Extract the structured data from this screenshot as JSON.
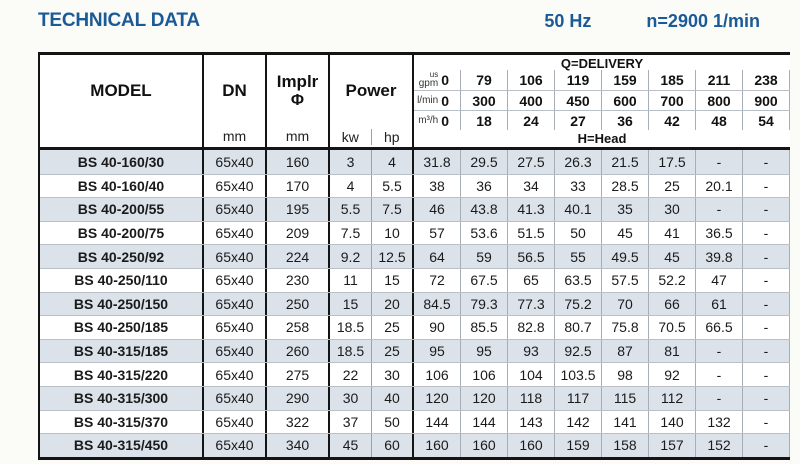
{
  "header": {
    "title": "TECHNICAL DATA",
    "frequency": "50 Hz",
    "speed": "n=2900 1/min"
  },
  "colors": {
    "accent_blue": "#1a5a96",
    "row_shade": "#dce2ea",
    "border_dark": "#141414"
  },
  "table": {
    "columns": {
      "model": {
        "label": "MODEL"
      },
      "dn": {
        "label": "DN",
        "unit": "mm"
      },
      "impeller": {
        "label": "Implr",
        "symbol": "Φ",
        "unit": "mm"
      },
      "power": {
        "label": "Power",
        "unit_kw": "kw",
        "unit_hp": "hp"
      }
    },
    "delivery": {
      "title": "Q=DELIVERY",
      "head_title": "H=Head",
      "unit_rows": [
        {
          "unit_top": "us",
          "unit": "gpm",
          "values": [
            "0",
            "79",
            "106",
            "119",
            "159",
            "185",
            "211",
            "238"
          ]
        },
        {
          "unit": "l/min",
          "values": [
            "0",
            "300",
            "400",
            "450",
            "600",
            "700",
            "800",
            "900"
          ]
        },
        {
          "unit": "m³/h",
          "values": [
            "0",
            "18",
            "24",
            "27",
            "36",
            "42",
            "48",
            "54"
          ]
        }
      ]
    },
    "rows": [
      {
        "model": "BS 40-160/30",
        "dn": "65x40",
        "impeller": "160",
        "kw": "3",
        "hp": "4",
        "heads": [
          "31.8",
          "29.5",
          "27.5",
          "26.3",
          "21.5",
          "17.5",
          "-",
          "-"
        ]
      },
      {
        "model": "BS 40-160/40",
        "dn": "65x40",
        "impeller": "170",
        "kw": "4",
        "hp": "5.5",
        "heads": [
          "38",
          "36",
          "34",
          "33",
          "28.5",
          "25",
          "20.1",
          "-"
        ]
      },
      {
        "model": "BS 40-200/55",
        "dn": "65x40",
        "impeller": "195",
        "kw": "5.5",
        "hp": "7.5",
        "heads": [
          "46",
          "43.8",
          "41.3",
          "40.1",
          "35",
          "30",
          "-",
          "-"
        ]
      },
      {
        "model": "BS 40-200/75",
        "dn": "65x40",
        "impeller": "209",
        "kw": "7.5",
        "hp": "10",
        "heads": [
          "57",
          "53.6",
          "51.5",
          "50",
          "45",
          "41",
          "36.5",
          "-"
        ]
      },
      {
        "model": "BS 40-250/92",
        "dn": "65x40",
        "impeller": "224",
        "kw": "9.2",
        "hp": "12.5",
        "heads": [
          "64",
          "59",
          "56.5",
          "55",
          "49.5",
          "45",
          "39.8",
          "-"
        ]
      },
      {
        "model": "BS 40-250/110",
        "dn": "65x40",
        "impeller": "230",
        "kw": "11",
        "hp": "15",
        "heads": [
          "72",
          "67.5",
          "65",
          "63.5",
          "57.5",
          "52.2",
          "47",
          "-"
        ]
      },
      {
        "model": "BS 40-250/150",
        "dn": "65x40",
        "impeller": "250",
        "kw": "15",
        "hp": "20",
        "heads": [
          "84.5",
          "79.3",
          "77.3",
          "75.2",
          "70",
          "66",
          "61",
          "-"
        ]
      },
      {
        "model": "BS 40-250/185",
        "dn": "65x40",
        "impeller": "258",
        "kw": "18.5",
        "hp": "25",
        "heads": [
          "90",
          "85.5",
          "82.8",
          "80.7",
          "75.8",
          "70.5",
          "66.5",
          "-"
        ]
      },
      {
        "model": "BS 40-315/185",
        "dn": "65x40",
        "impeller": "260",
        "kw": "18.5",
        "hp": "25",
        "heads": [
          "95",
          "95",
          "93",
          "92.5",
          "87",
          "81",
          "-",
          "-"
        ]
      },
      {
        "model": "BS 40-315/220",
        "dn": "65x40",
        "impeller": "275",
        "kw": "22",
        "hp": "30",
        "heads": [
          "106",
          "106",
          "104",
          "103.5",
          "98",
          "92",
          "-",
          "-"
        ]
      },
      {
        "model": "BS 40-315/300",
        "dn": "65x40",
        "impeller": "290",
        "kw": "30",
        "hp": "40",
        "heads": [
          "120",
          "120",
          "118",
          "117",
          "115",
          "112",
          "-",
          "-"
        ]
      },
      {
        "model": "BS 40-315/370",
        "dn": "65x40",
        "impeller": "322",
        "kw": "37",
        "hp": "50",
        "heads": [
          "144",
          "144",
          "143",
          "142",
          "141",
          "140",
          "132",
          "-"
        ]
      },
      {
        "model": "BS 40-315/450",
        "dn": "65x40",
        "impeller": "340",
        "kw": "45",
        "hp": "60",
        "heads": [
          "160",
          "160",
          "160",
          "159",
          "158",
          "157",
          "152",
          "-"
        ]
      }
    ]
  }
}
